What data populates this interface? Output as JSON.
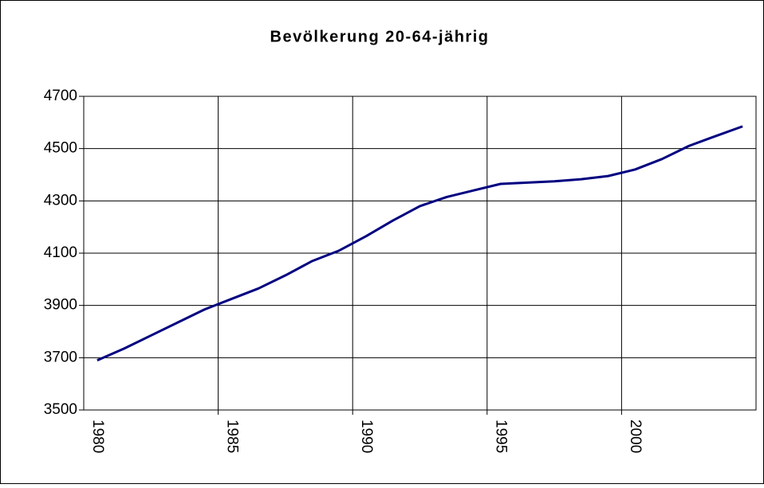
{
  "chart_data": {
    "type": "line",
    "title": "Bevölkerung 20-64-jährig",
    "categories": [
      "1980",
      null,
      null,
      null,
      null,
      "1985",
      null,
      null,
      null,
      null,
      "1990",
      null,
      null,
      null,
      null,
      "1995",
      null,
      null,
      null,
      null,
      "2000",
      null,
      null,
      null,
      null
    ],
    "values": [
      3690,
      3735,
      3785,
      3835,
      3885,
      3925,
      3965,
      4015,
      4070,
      4110,
      4165,
      4225,
      4280,
      4315,
      4340,
      4365,
      4370,
      4375,
      4383,
      4395,
      4420,
      4460,
      4510,
      4548,
      4585
    ],
    "color": "#000080",
    "ylim": [
      3500,
      4700
    ],
    "yticks": [
      3500,
      3700,
      3900,
      4100,
      4300,
      4500,
      4700
    ],
    "grid": true
  }
}
